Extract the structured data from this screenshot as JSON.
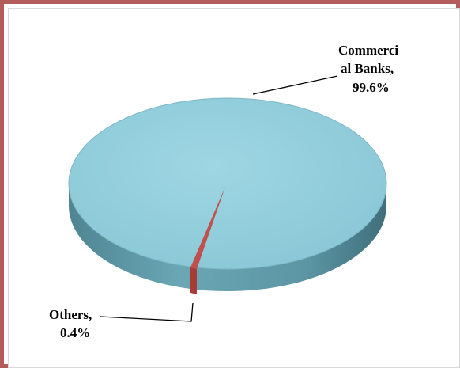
{
  "chart_data": {
    "type": "pie",
    "style": "3d",
    "slices": [
      {
        "label_lines": [
          "Commerci",
          "al Banks,",
          "99.6%"
        ],
        "category": "Commercial Banks",
        "value": 99.6,
        "color": "#92cddc"
      },
      {
        "label_lines": [
          "Others,",
          "0.4%"
        ],
        "category": "Others",
        "value": 0.4,
        "color": "#c0504d"
      }
    ]
  },
  "colors": {
    "frame_border": "#b45b5b",
    "commercial_top": "#92cddc",
    "commercial_side": "#5f9aa8",
    "others_fill": "#c0504d"
  }
}
